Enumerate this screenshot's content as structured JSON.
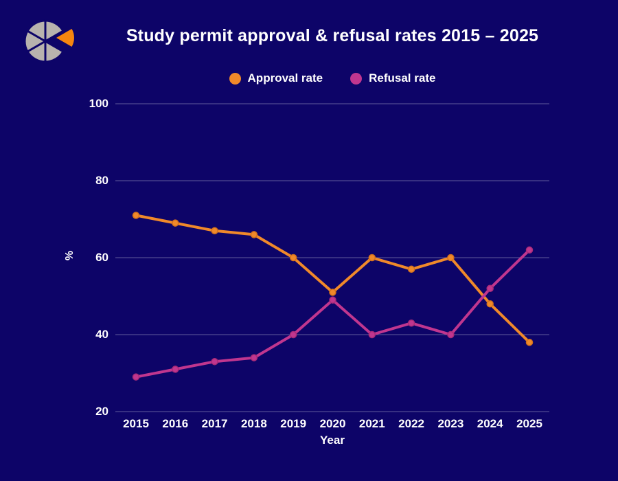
{
  "page": {
    "title": "Study permit approval & refusal rates 2015 – 2025"
  },
  "colors": {
    "background": "#0d0468",
    "text": "#ffffff",
    "gridline": "rgba(255,255,255,0.35)",
    "logo_gray": "#b8b3ae",
    "logo_orange": "#f5860f"
  },
  "legend": {
    "items": [
      {
        "label": "Approval rate",
        "color": "#f0892a"
      },
      {
        "label": "Refusal rate",
        "color": "#c0368f"
      }
    ]
  },
  "chart_data": {
    "type": "line",
    "title": "Study permit approval & refusal rates 2015 – 2025",
    "xlabel": "Year",
    "ylabel": "%",
    "categories": [
      "2015",
      "2016",
      "2017",
      "2018",
      "2019",
      "2020",
      "2021",
      "2022",
      "2023",
      "2024",
      "2025"
    ],
    "series": [
      {
        "name": "Approval rate",
        "color": "#f0892a",
        "marker_stroke": "#d4711b",
        "values": [
          71,
          69,
          67,
          66,
          60,
          51,
          60,
          57,
          60,
          48,
          38
        ]
      },
      {
        "name": "Refusal rate",
        "color": "#c0368f",
        "marker_stroke": "#a82b78",
        "values": [
          29,
          31,
          33,
          34,
          40,
          49,
          40,
          43,
          40,
          52,
          62
        ]
      }
    ],
    "ylim": [
      20,
      100
    ],
    "yticks": [
      20,
      40,
      60,
      80,
      100
    ],
    "grid": "horizontal",
    "legend_position": "top"
  }
}
